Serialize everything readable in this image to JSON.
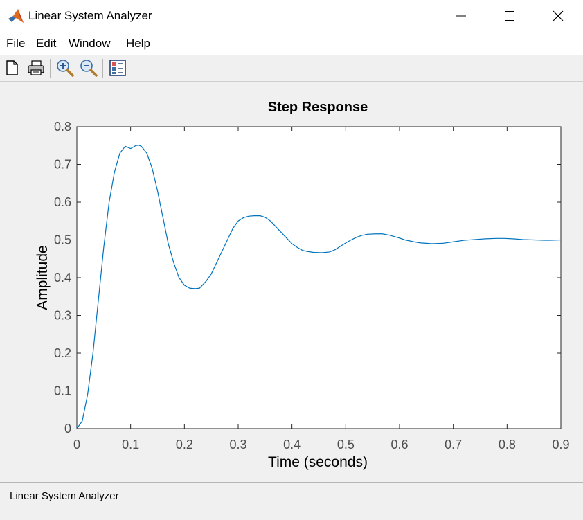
{
  "window": {
    "title": "Linear System Analyzer"
  },
  "menu": [
    "File",
    "Edit",
    "Window",
    "Help"
  ],
  "toolbar": {
    "buttons": [
      {
        "name": "new-file-icon"
      },
      {
        "name": "print-icon"
      },
      {
        "name": "zoom-in-icon"
      },
      {
        "name": "zoom-out-icon"
      },
      {
        "name": "plot-configurations-icon"
      }
    ]
  },
  "status": {
    "text": "Linear System Analyzer"
  },
  "colors": {
    "response": "#0072bd",
    "steady_state": "#333333",
    "axes": "#262626"
  },
  "chart_data": {
    "type": "line",
    "title": "Step Response",
    "xlabel": "Time (seconds)",
    "ylabel": "Amplitude",
    "xlim": [
      0,
      0.9
    ],
    "ylim": [
      0,
      0.8
    ],
    "xticks": [
      "0",
      "0.1",
      "0.2",
      "0.3",
      "0.4",
      "0.5",
      "0.6",
      "0.7",
      "0.8",
      "0.9"
    ],
    "yticks": [
      "0",
      "0.1",
      "0.2",
      "0.3",
      "0.4",
      "0.5",
      "0.6",
      "0.7",
      "0.8"
    ],
    "grid": false,
    "steady_state_value": 0.5,
    "series": [
      {
        "x": [
          0,
          0.01,
          0.02,
          0.03,
          0.04,
          0.05,
          0.06,
          0.07,
          0.08,
          0.09,
          0.1,
          0.11,
          0.115,
          0.12,
          0.13,
          0.14,
          0.15,
          0.16,
          0.17,
          0.18,
          0.19,
          0.2,
          0.21,
          0.22,
          0.228,
          0.24,
          0.25,
          0.26,
          0.27,
          0.28,
          0.29,
          0.3,
          0.31,
          0.32,
          0.33,
          0.341,
          0.35,
          0.36,
          0.37,
          0.38,
          0.39,
          0.4,
          0.41,
          0.42,
          0.43,
          0.44,
          0.455,
          0.47,
          0.48,
          0.49,
          0.5,
          0.51,
          0.52,
          0.53,
          0.54,
          0.555,
          0.568,
          0.58,
          0.59,
          0.6,
          0.61,
          0.62,
          0.63,
          0.64,
          0.65,
          0.66,
          0.68,
          0.7,
          0.72,
          0.74,
          0.76,
          0.78,
          0.795,
          0.81,
          0.83,
          0.85,
          0.87,
          0.88,
          0.9
        ],
        "y": [
          0,
          0.02,
          0.09,
          0.2,
          0.34,
          0.48,
          0.6,
          0.68,
          0.73,
          0.748,
          0.742,
          0.75,
          0.751,
          0.748,
          0.73,
          0.69,
          0.63,
          0.56,
          0.49,
          0.44,
          0.4,
          0.38,
          0.372,
          0.371,
          0.372,
          0.39,
          0.41,
          0.44,
          0.47,
          0.5,
          0.53,
          0.55,
          0.559,
          0.563,
          0.564,
          0.564,
          0.56,
          0.55,
          0.535,
          0.52,
          0.505,
          0.49,
          0.48,
          0.472,
          0.469,
          0.467,
          0.466,
          0.468,
          0.474,
          0.483,
          0.492,
          0.5,
          0.507,
          0.512,
          0.515,
          0.516,
          0.516,
          0.513,
          0.509,
          0.505,
          0.5,
          0.497,
          0.494,
          0.492,
          0.491,
          0.49,
          0.491,
          0.495,
          0.499,
          0.501,
          0.503,
          0.504,
          0.504,
          0.503,
          0.501,
          0.5,
          0.499,
          0.499,
          0.5
        ]
      }
    ]
  }
}
